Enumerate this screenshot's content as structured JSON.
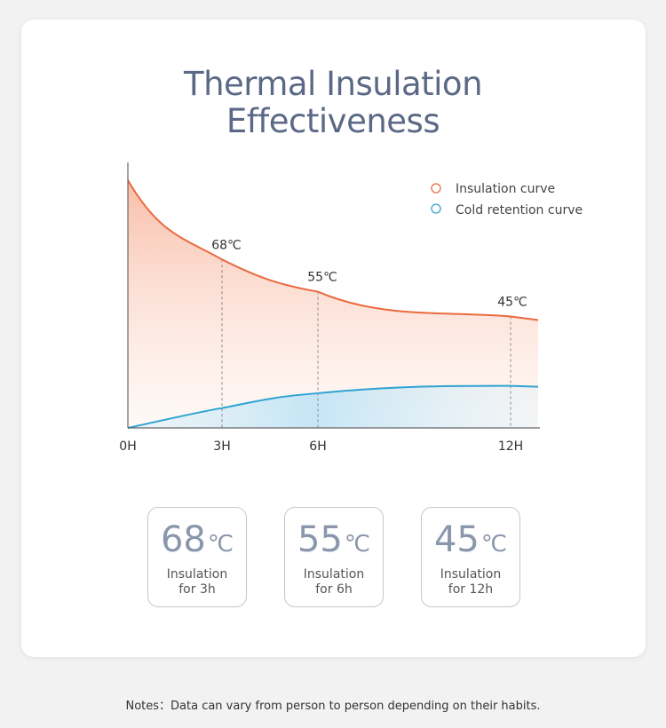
{
  "title": {
    "line1": "Thermal Insulation",
    "line2": "Effectiveness"
  },
  "legend": {
    "insulation": "Insulation curve",
    "cold": "Cold retention curve"
  },
  "colors": {
    "insulation": "#ea6a3f",
    "cold": "#2fa3d3",
    "title": "#5b6986",
    "stat_value": "#8a96ab"
  },
  "chart_data": {
    "type": "line",
    "x_labels": [
      "0H",
      "3H",
      "6H",
      "12H"
    ],
    "series": [
      {
        "name": "Insulation curve",
        "x": [
          0,
          3,
          6,
          12
        ],
        "y": [
          100,
          68,
          55,
          45
        ]
      },
      {
        "name": "Cold retention curve",
        "x": [
          0,
          3,
          6,
          12
        ],
        "y": [
          0,
          8,
          14,
          17
        ]
      }
    ],
    "annotations": [
      {
        "x": 3,
        "label": "68℃"
      },
      {
        "x": 6,
        "label": "55℃"
      },
      {
        "x": 12,
        "label": "45℃"
      }
    ],
    "legend_position": "top-right",
    "grid": false
  },
  "stats": [
    {
      "value": "68",
      "unit": "℃",
      "line1": "Insulation",
      "line2": "for 3h"
    },
    {
      "value": "55",
      "unit": "℃",
      "line1": "Insulation",
      "line2": "for 6h"
    },
    {
      "value": "45",
      "unit": "℃",
      "line1": "Insulation",
      "line2": "for 12h"
    }
  ],
  "note": "Notes：Data can vary from person to person depending on their habits."
}
